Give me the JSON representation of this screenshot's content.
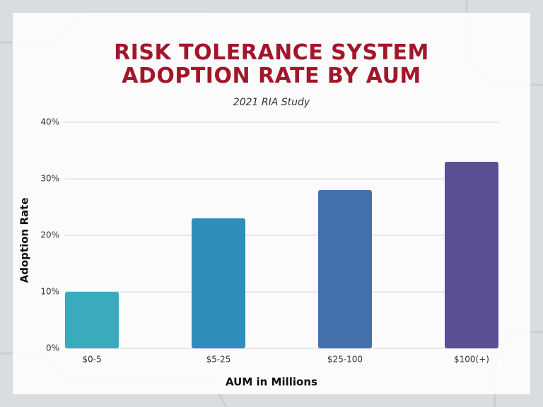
{
  "chart_data": {
    "type": "bar",
    "title": "RISK TOLERANCE SYSTEM ADOPTION RATE BY AUM",
    "subtitle": "2021 RIA Study",
    "x_label": "AUM in Millions",
    "y_label": "Adoption Rate",
    "categories": [
      "$0-5",
      "$5-25",
      "$25-100",
      "$100(+)"
    ],
    "values": [
      10,
      23,
      28,
      33
    ],
    "colors": [
      "#3aabbd",
      "#2f8dbb",
      "#4470ae",
      "#5c4e92"
    ],
    "ylim": [
      0,
      40
    ],
    "yticks": [
      {
        "value": 0,
        "label": "0%"
      },
      {
        "value": 10,
        "label": "10%"
      },
      {
        "value": 20,
        "label": "20%"
      },
      {
        "value": 30,
        "label": "30%"
      },
      {
        "value": 40,
        "label": "40%"
      }
    ],
    "grid": true
  }
}
